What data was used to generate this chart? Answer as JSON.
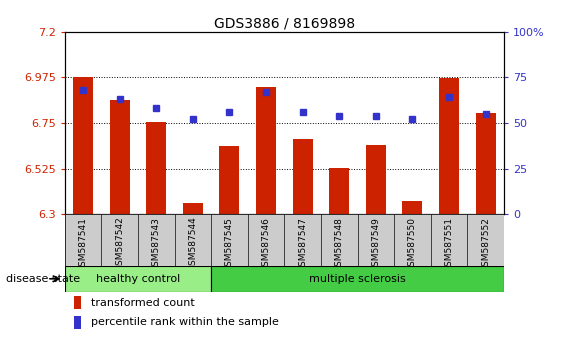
{
  "title": "GDS3886 / 8169898",
  "samples": [
    "GSM587541",
    "GSM587542",
    "GSM587543",
    "GSM587544",
    "GSM587545",
    "GSM587546",
    "GSM587547",
    "GSM587548",
    "GSM587549",
    "GSM587550",
    "GSM587551",
    "GSM587552"
  ],
  "bar_values": [
    6.975,
    6.865,
    6.755,
    6.355,
    6.635,
    6.93,
    6.67,
    6.53,
    6.64,
    6.365,
    6.97,
    6.8
  ],
  "percentile_values": [
    68,
    63,
    58,
    52,
    56,
    67,
    56,
    54,
    54,
    52,
    64,
    55
  ],
  "y_min": 6.3,
  "y_max": 7.2,
  "yticks_left": [
    6.3,
    6.525,
    6.75,
    6.975,
    7.2
  ],
  "ytick_labels_left": [
    "6.3",
    "6.525",
    "6.75",
    "6.975",
    "7.2"
  ],
  "yticks_right": [
    0,
    25,
    50,
    75,
    100
  ],
  "ytick_labels_right": [
    "0",
    "25",
    "50",
    "75",
    "100%"
  ],
  "bar_color": "#cc2200",
  "dot_color": "#3333cc",
  "healthy_control_count": 4,
  "group1_label": "healthy control",
  "group2_label": "multiple sclerosis",
  "group1_color": "#99ee88",
  "group2_color": "#44cc44",
  "disease_state_label": "disease state",
  "legend_bar_label": "transformed count",
  "legend_dot_label": "percentile rank within the sample",
  "tick_area_color": "#cccccc",
  "bg_color": "#ffffff"
}
